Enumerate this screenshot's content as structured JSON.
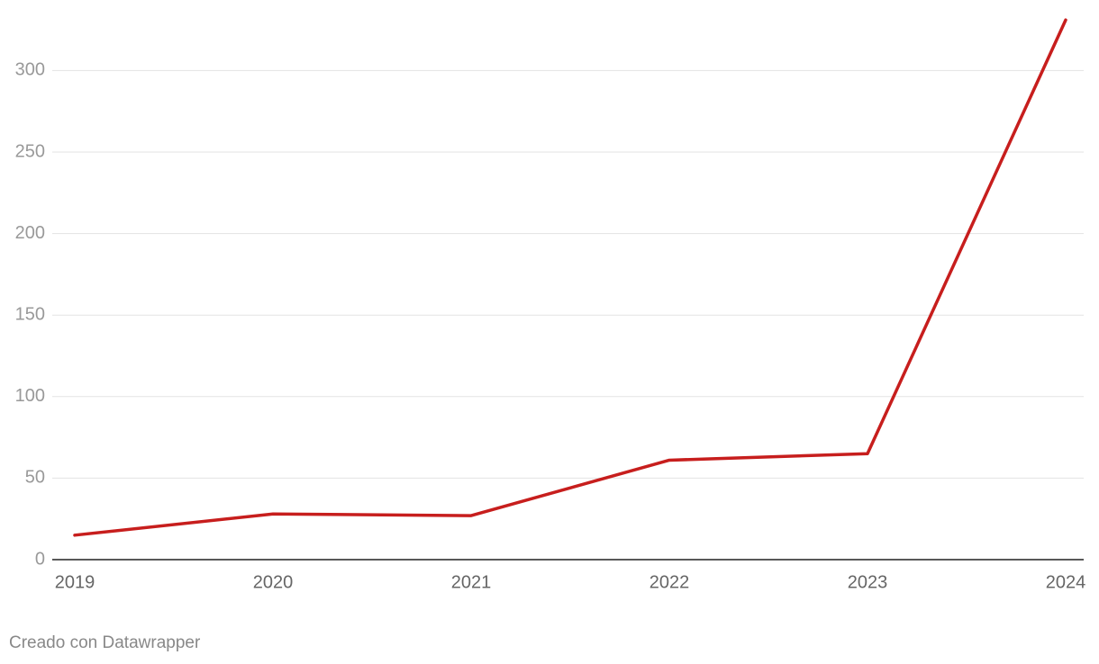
{
  "chart_data": {
    "type": "line",
    "x": [
      2019,
      2020,
      2021,
      2022,
      2023,
      2024
    ],
    "series": [
      {
        "color": "#c71e1d",
        "values": [
          15,
          28,
          27,
          61,
          65,
          331
        ]
      }
    ],
    "xlim": [
      2019,
      2024
    ],
    "xticks": [
      2019,
      2020,
      2021,
      2022,
      2023,
      2024
    ],
    "ylim": [
      0,
      335
    ],
    "yticks": [
      0,
      50,
      100,
      150,
      200,
      250,
      300
    ],
    "grid": true,
    "credit": "Creado con Datawrapper"
  }
}
